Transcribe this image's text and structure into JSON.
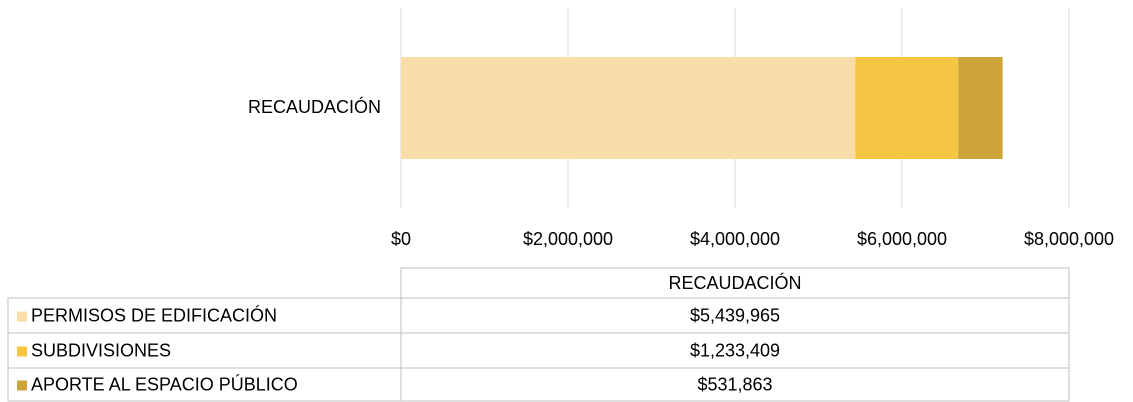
{
  "chart_data": {
    "type": "bar",
    "orientation": "horizontal",
    "stacked": true,
    "categories": [
      "RECAUDACIÓN"
    ],
    "series": [
      {
        "name": "PERMISOS DE EDIFICACIÓN",
        "color": "#F9DDA8",
        "values": [
          5439965
        ],
        "value_labels": [
          "$5,439,965"
        ]
      },
      {
        "name": "SUBDIVISIONES",
        "color": "#F5C644",
        "values": [
          1233409
        ],
        "value_labels": [
          "$1,233,409"
        ]
      },
      {
        "name": "APORTE AL ESPACIO PÚBLICO",
        "color": "#CDA43A",
        "values": [
          531863
        ],
        "value_labels": [
          "$531,863"
        ]
      }
    ],
    "xlim": [
      0,
      8000000
    ],
    "xticks": [
      {
        "value": 0,
        "label": "$0"
      },
      {
        "value": 2000000,
        "label": "$2,000,000"
      },
      {
        "value": 4000000,
        "label": "$4,000,000"
      },
      {
        "value": 6000000,
        "label": "$6,000,000"
      },
      {
        "value": 8000000,
        "label": "$8,000,000"
      }
    ],
    "grid": true,
    "data_table": true
  }
}
